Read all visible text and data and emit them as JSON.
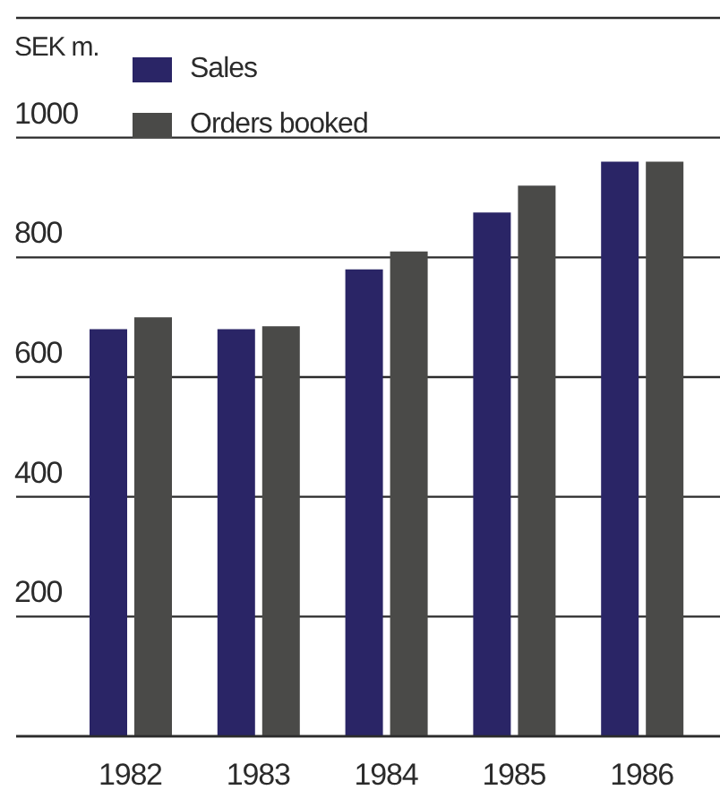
{
  "chart_data": {
    "type": "bar",
    "ylabel": "SEK m.",
    "categories": [
      "1982",
      "1983",
      "1984",
      "1985",
      "1986"
    ],
    "series": [
      {
        "name": "Sales",
        "color": "#2a2566",
        "values": [
          680,
          680,
          780,
          875,
          960
        ]
      },
      {
        "name": "Orders booked",
        "color": "#4a4a48",
        "values": [
          700,
          685,
          810,
          920,
          960
        ]
      }
    ],
    "ylim": [
      0,
      1200
    ],
    "yticks": [
      {
        "value": 0,
        "label": null
      },
      200,
      400,
      600,
      800,
      1000,
      {
        "value": 1200,
        "label": null
      }
    ],
    "grid": "y",
    "legend": "top left"
  }
}
